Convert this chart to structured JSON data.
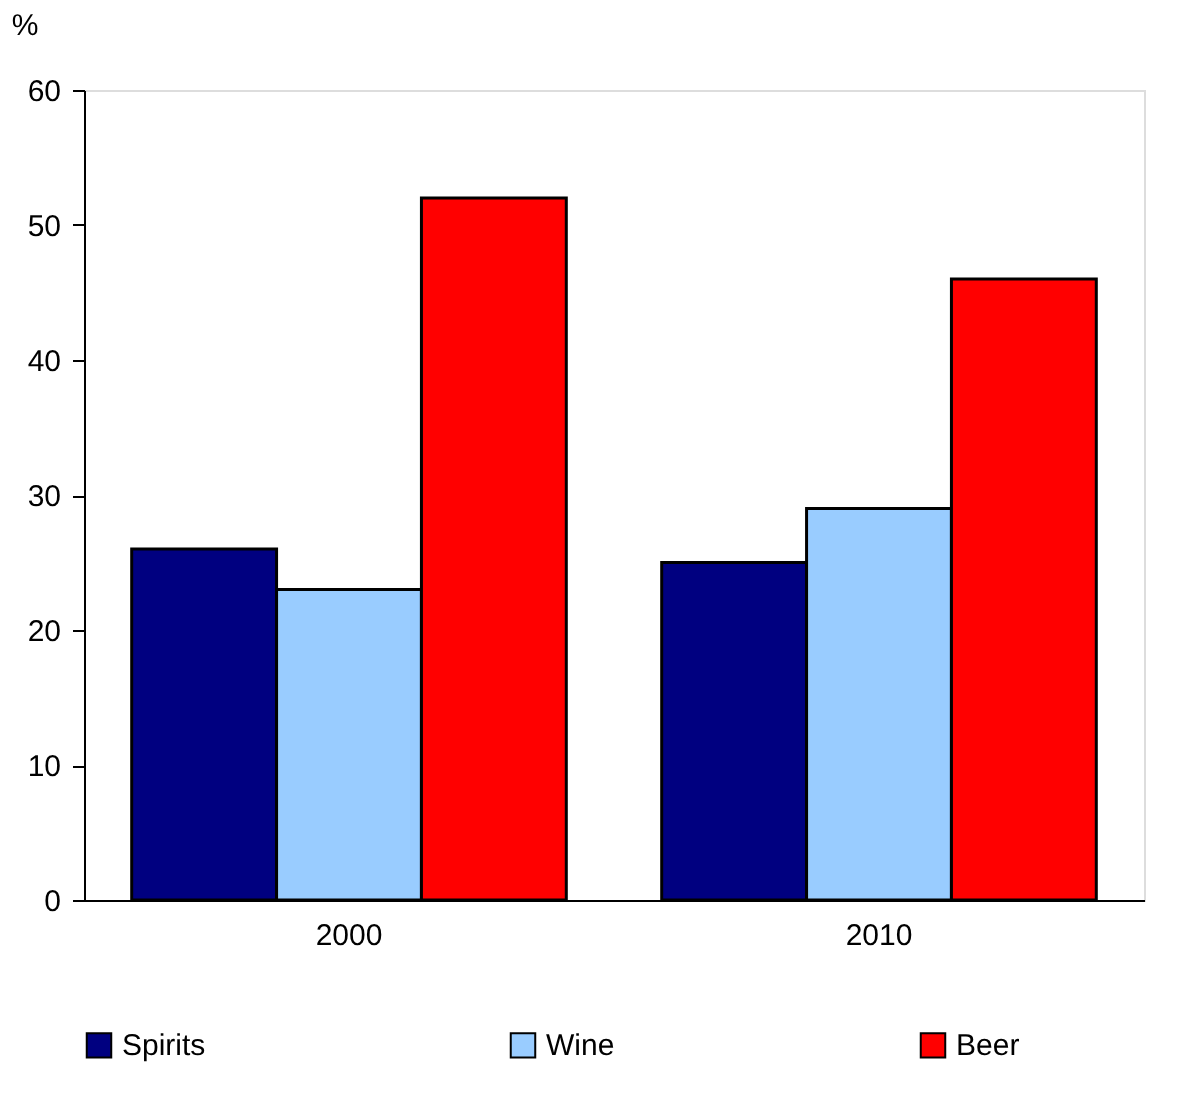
{
  "chart_data": {
    "type": "bar",
    "ylabel": "%",
    "categories": [
      "2000",
      "2010"
    ],
    "series": [
      {
        "name": "Spirits",
        "color": "#000080",
        "values": [
          26,
          25
        ]
      },
      {
        "name": "Wine",
        "color": "#99ccff",
        "values": [
          23,
          29
        ]
      },
      {
        "name": "Beer",
        "color": "#ff0000",
        "values": [
          52,
          46
        ]
      }
    ],
    "ylim": [
      0,
      60
    ],
    "yticks": [
      0,
      10,
      20,
      30,
      40,
      50,
      60
    ],
    "grid": false,
    "legend": "bottom"
  }
}
